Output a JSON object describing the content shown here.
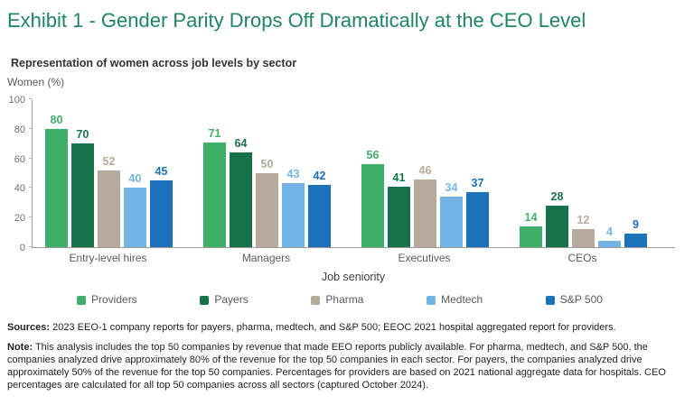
{
  "header": {
    "title": "Exhibit 1 - Gender Parity Drops Off Dramatically at the CEO Level"
  },
  "chart": {
    "subtitle": "Representation of women across job levels by sector",
    "y_axis_label": "Women (%)",
    "x_axis_label": "Job seniority"
  },
  "chart_data": {
    "type": "bar",
    "title": "Representation of women across job levels by sector",
    "categories": [
      "Entry-level hires",
      "Managers",
      "Executives",
      "CEOs"
    ],
    "series": [
      {
        "name": "Providers",
        "color": "#3FAE68",
        "values": [
          80,
          71,
          56,
          14
        ]
      },
      {
        "name": "Payers",
        "color": "#17714A",
        "values": [
          70,
          64,
          41,
          28
        ]
      },
      {
        "name": "Pharma",
        "color": "#B6AA9A",
        "values": [
          52,
          50,
          46,
          12
        ]
      },
      {
        "name": "Medtech",
        "color": "#72B4E3",
        "values": [
          40,
          43,
          34,
          4
        ]
      },
      {
        "name": "S&P 500",
        "color": "#1C71B8",
        "values": [
          45,
          42,
          37,
          9
        ]
      }
    ],
    "xlabel": "Job seniority",
    "ylabel": "Women (%)",
    "ylim": [
      0,
      100
    ],
    "yticks": [
      0,
      20,
      40,
      60,
      80,
      100
    ],
    "grid": false,
    "value_labels": true,
    "legend_position": "bottom",
    "title_color": "#1F8464",
    "axis_color": "#9b9b9b"
  },
  "footer": {
    "sources_label": "Sources:",
    "sources_text": " 2023 EEO-1 company reports for payers, pharma, medtech, and S&P 500; EEOC 2021 hospital aggregated report for providers.",
    "note_label": "Note:",
    "note_text": " This analysis includes the top 50 companies by revenue that made EEO reports publicly available. For pharma, medtech, and S&P 500, the companies analyzed drive approximately 80% of the revenue for the top 50 companies in each sector. For payers, the companies analyzed drive approximately 50% of the revenue for the top 50 companies. Percentages for providers are based on 2021 national aggregate data for hospitals. CEO percentages are calculated for all top 50 companies across all sectors (captured October 2024)."
  }
}
